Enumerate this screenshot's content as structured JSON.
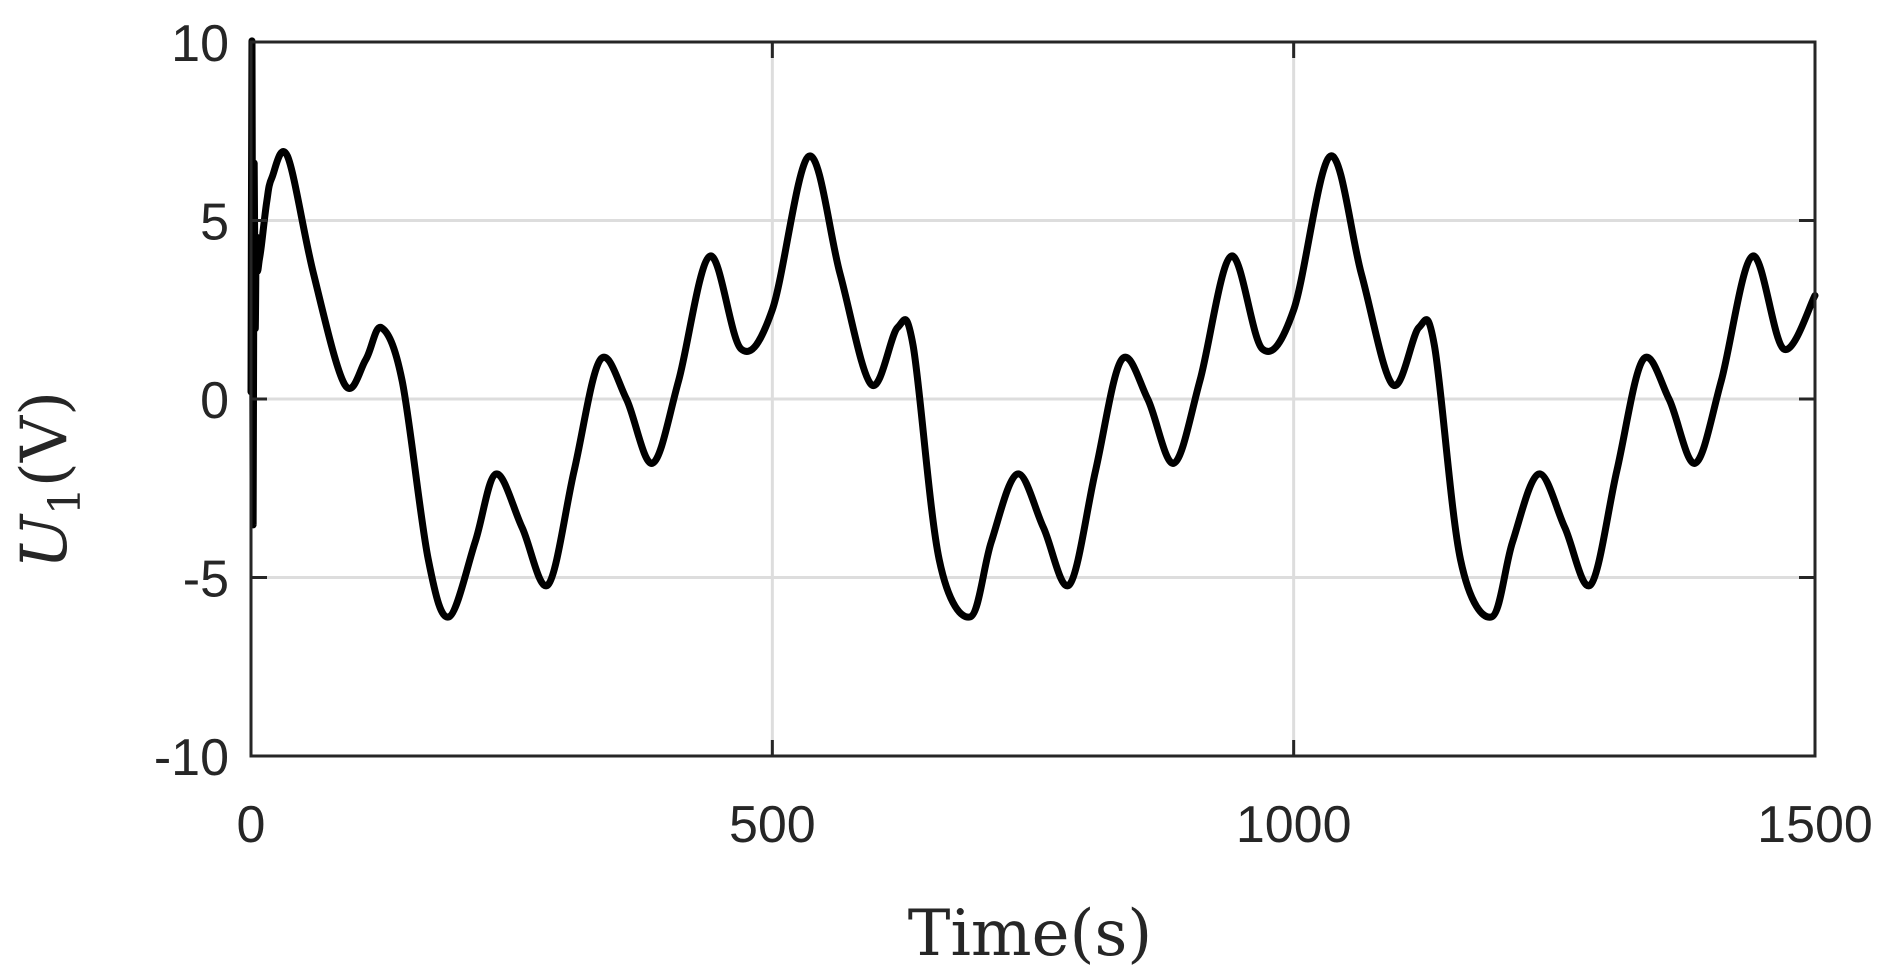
{
  "chart_data": {
    "type": "line",
    "title": "",
    "xlabel": "Time(s)",
    "ylabel_main": "U",
    "ylabel_sub": "1",
    "ylabel_unit": "(V)",
    "xlim": [
      0,
      1500
    ],
    "ylim": [
      -10,
      10
    ],
    "xticks": [
      0,
      500,
      1000,
      1500
    ],
    "xtick_labels": [
      "0",
      "500",
      "1000",
      "1500"
    ],
    "yticks": [
      -10,
      -5,
      0,
      5,
      10
    ],
    "ytick_labels": [
      "-10",
      "-5",
      "0",
      "5",
      "10"
    ],
    "grid": true,
    "line_color": "#000000",
    "grid_color": "#dddddd",
    "axis_color": "#262626",
    "series": [
      {
        "x": [
          0,
          1,
          2,
          3,
          4,
          5,
          6,
          8,
          10,
          15,
          20,
          35,
          60,
          90,
          110,
          125,
          145,
          170,
          190,
          215,
          235,
          260,
          285,
          310,
          335,
          360,
          385,
          410,
          440,
          470,
          500,
          535,
          565,
          595,
          620,
          635,
          660,
          690,
          710,
          735,
          760,
          785,
          810,
          835,
          860,
          885,
          910,
          940,
          970,
          1000,
          1035,
          1065,
          1095,
          1120,
          1135,
          1160,
          1190,
          1210,
          1235,
          1260,
          1285,
          1310,
          1335,
          1360,
          1385,
          1410,
          1440,
          1470,
          1500
        ],
        "y": [
          0.2,
          10.0,
          -3.5,
          6.5,
          2.0,
          4.5,
          3.6,
          3.9,
          4.3,
          5.5,
          6.2,
          6.8,
          3.5,
          0.4,
          1.1,
          2.0,
          0.5,
          -4.5,
          -6.1,
          -4.0,
          -2.1,
          -3.6,
          -5.2,
          -2.0,
          1.1,
          0.0,
          -1.8,
          0.5,
          4.0,
          1.4,
          2.5,
          6.8,
          3.5,
          0.4,
          2.0,
          1.5,
          -4.5,
          -6.1,
          -4.0,
          -2.1,
          -3.6,
          -5.2,
          -2.0,
          1.1,
          0.0,
          -1.8,
          0.5,
          4.0,
          1.4,
          2.5,
          6.8,
          3.5,
          0.4,
          2.0,
          1.5,
          -4.5,
          -6.1,
          -4.0,
          -2.1,
          -3.6,
          -5.2,
          -2.0,
          1.1,
          0.0,
          -1.8,
          0.5,
          4.0,
          1.4,
          2.9
        ]
      }
    ]
  }
}
